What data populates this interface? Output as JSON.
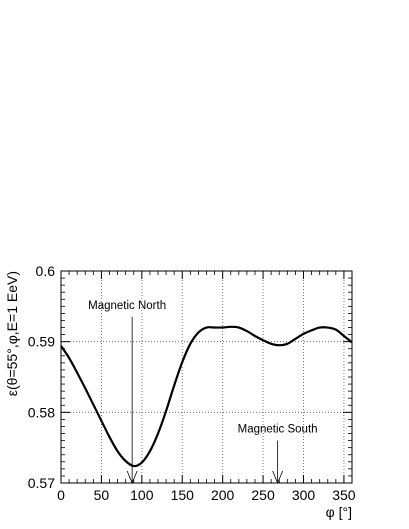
{
  "chart_data": {
    "type": "line",
    "xlabel": "φ [°]",
    "ylabel": "ε(θ=55°,φ,E=1 EeV)",
    "xlim": [
      0,
      360
    ],
    "ylim": [
      0.57,
      0.6
    ],
    "x_ticks": [
      0,
      50,
      100,
      150,
      200,
      250,
      300,
      350
    ],
    "y_ticks": [
      0.57,
      0.58,
      0.59,
      0.6
    ],
    "x_tick_labels": [
      "0",
      "50",
      "100",
      "150",
      "200",
      "250",
      "300",
      "350"
    ],
    "y_tick_labels": [
      "0.57",
      "0.58",
      "0.59",
      "0.6"
    ],
    "grid": true,
    "series": [
      {
        "color": "#000000",
        "x": [
          0,
          10,
          20,
          30,
          40,
          50,
          60,
          70,
          80,
          90,
          100,
          110,
          120,
          130,
          140,
          150,
          160,
          170,
          180,
          190,
          200,
          210,
          220,
          230,
          240,
          250,
          260,
          270,
          280,
          290,
          300,
          310,
          320,
          330,
          340,
          350,
          360
        ],
        "y": [
          0.5894,
          0.5877,
          0.5856,
          0.5834,
          0.5811,
          0.5788,
          0.5765,
          0.5745,
          0.5731,
          0.5724,
          0.5729,
          0.5745,
          0.577,
          0.5802,
          0.5838,
          0.5871,
          0.5897,
          0.5913,
          0.592,
          0.592,
          0.592,
          0.5921,
          0.592,
          0.5915,
          0.5908,
          0.5902,
          0.5897,
          0.5895,
          0.5897,
          0.5904,
          0.5911,
          0.5916,
          0.592,
          0.592,
          0.5917,
          0.5908,
          0.5899
        ]
      }
    ],
    "annotations": [
      {
        "text": "Magnetic North",
        "arrow_x": 88,
        "arrow_y_from": 0.5935,
        "arrow_y_to": 0.57
      },
      {
        "text": "Magnetic South",
        "arrow_x": 268,
        "arrow_y_from": 0.576,
        "arrow_y_to": 0.57
      }
    ]
  }
}
